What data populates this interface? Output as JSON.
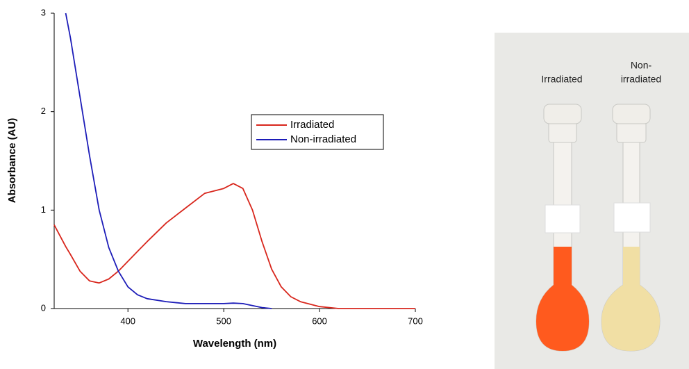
{
  "chart_data": {
    "type": "line",
    "xlabel": "Wavelength (nm)",
    "ylabel": "Absorbance (AU)",
    "x": [
      323,
      335,
      340,
      350,
      360,
      370,
      380,
      390,
      400,
      410,
      420,
      440,
      460,
      480,
      500,
      510,
      520,
      530,
      540,
      550,
      560,
      570,
      580,
      600,
      620,
      650,
      700
    ],
    "series": [
      {
        "name": "Irradiated",
        "color": "#d8261c",
        "values": [
          0.85,
          0.63,
          0.55,
          0.38,
          0.28,
          0.26,
          0.3,
          0.38,
          0.48,
          0.58,
          0.68,
          0.87,
          1.02,
          1.17,
          1.22,
          1.27,
          1.22,
          1.0,
          0.68,
          0.4,
          0.22,
          0.12,
          0.07,
          0.02,
          0,
          0,
          0
        ]
      },
      {
        "name": "Non-irradiated",
        "color": "#1c1cb8",
        "values": [
          null,
          3.0,
          2.75,
          2.15,
          1.55,
          1.0,
          0.62,
          0.38,
          0.22,
          0.14,
          0.1,
          0.07,
          0.05,
          0.05,
          0.05,
          0.055,
          0.05,
          0.03,
          0.01,
          0,
          null,
          null,
          null,
          null,
          null,
          null,
          null
        ]
      }
    ],
    "xlim": [
      323,
      700
    ],
    "xticks": [
      400,
      500,
      600,
      700
    ],
    "ylim": [
      0,
      3
    ],
    "yticks": [
      0,
      1,
      2,
      3
    ]
  },
  "photo": {
    "captions": [
      "Irradiated",
      [
        "Non-",
        "irradiated"
      ]
    ]
  }
}
